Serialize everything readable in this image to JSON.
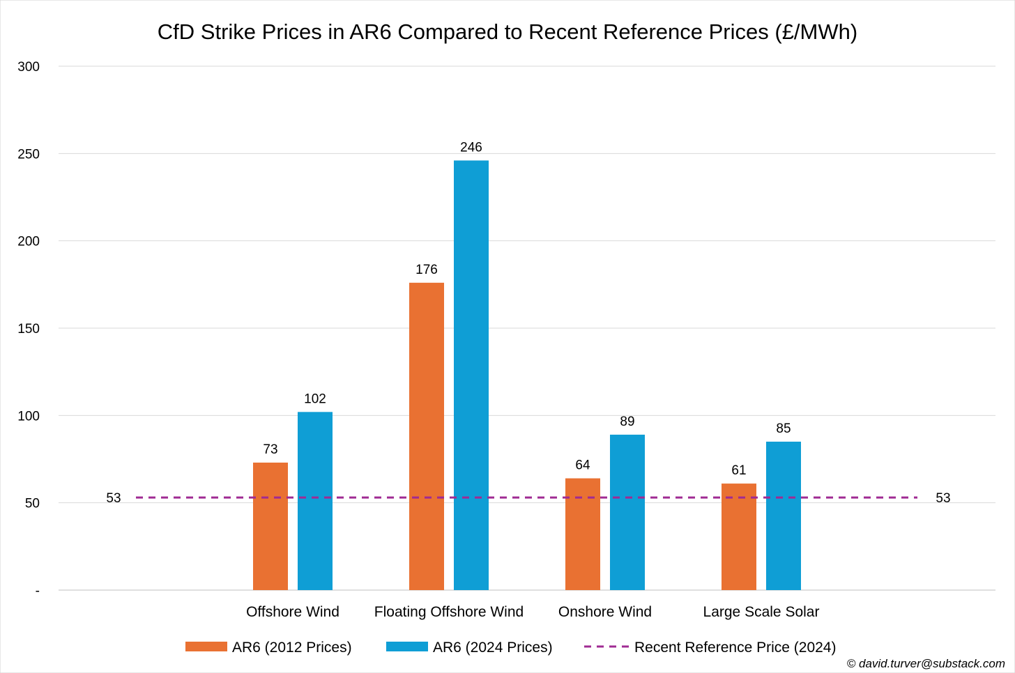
{
  "chart_data": {
    "type": "bar",
    "title": "CfD Strike Prices in AR6 Compared to Recent Reference Prices (£/MWh)",
    "categories": [
      "Offshore Wind",
      "Floating Offshore Wind",
      "Onshore Wind",
      "Large Scale Solar"
    ],
    "series": [
      {
        "name": "AR6 (2012 Prices)",
        "values": [
          73,
          176,
          64,
          61
        ],
        "color": "#e97132"
      },
      {
        "name": "AR6 (2024 Prices)",
        "values": [
          102,
          246,
          89,
          85
        ],
        "color": "#0f9ed5"
      }
    ],
    "reference_line": {
      "name": "Recent Reference Price (2024)",
      "value": 53,
      "label_left": "53",
      "label_right": "53",
      "color": "#a02b93",
      "style": "dashed"
    },
    "yticks": [
      {
        "value": 0,
        "label": "-"
      },
      {
        "value": 50,
        "label": "50"
      },
      {
        "value": 100,
        "label": "100"
      },
      {
        "value": 150,
        "label": "150"
      },
      {
        "value": 200,
        "label": "200"
      },
      {
        "value": 250,
        "label": "250"
      },
      {
        "value": 300,
        "label": "300"
      }
    ],
    "ylim": [
      0,
      300
    ],
    "xlabel": "",
    "ylabel": "",
    "grid": true,
    "legend_position": "bottom"
  },
  "credit": "© david.turver@substack.com"
}
